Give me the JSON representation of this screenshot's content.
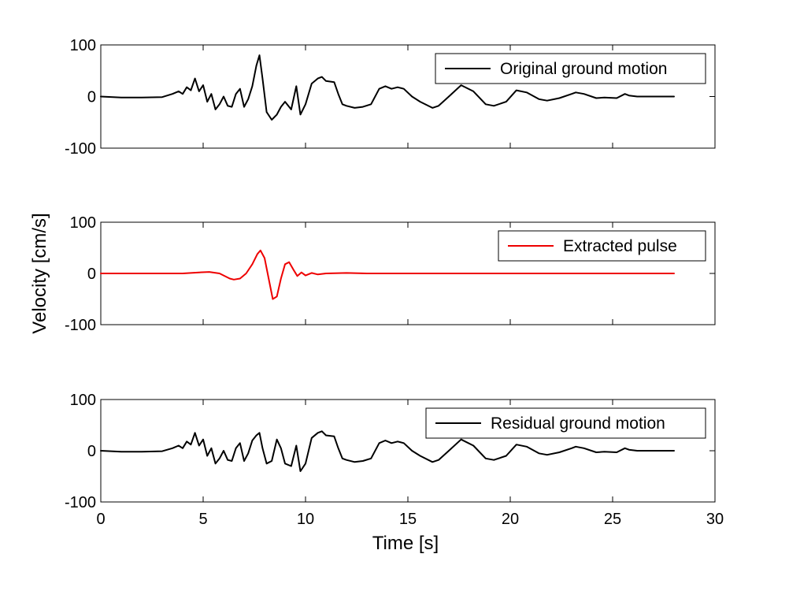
{
  "chart_data": [
    {
      "type": "line",
      "xlim": [
        0,
        30
      ],
      "ylim": [
        -100,
        100
      ],
      "xticks": [
        0,
        5,
        10,
        15,
        20,
        25,
        30
      ],
      "yticks": [
        -100,
        0,
        100
      ],
      "ytick_labels": [
        "-100",
        "0",
        "100"
      ],
      "xtick_labels": [],
      "grid": false,
      "legend_position": "top-right",
      "series": [
        {
          "name": "Original ground motion",
          "color": "#000000",
          "x": [
            0,
            1,
            2,
            3,
            3.5,
            3.8,
            4.0,
            4.2,
            4.4,
            4.6,
            4.8,
            5.0,
            5.2,
            5.4,
            5.6,
            5.8,
            6.0,
            6.2,
            6.4,
            6.6,
            6.8,
            7.0,
            7.2,
            7.4,
            7.6,
            7.75,
            7.9,
            8.1,
            8.35,
            8.6,
            8.8,
            9.0,
            9.3,
            9.55,
            9.75,
            10.0,
            10.3,
            10.6,
            10.8,
            11.0,
            11.4,
            11.6,
            11.8,
            12.0,
            12.4,
            12.8,
            13.2,
            13.6,
            13.9,
            14.2,
            14.5,
            14.8,
            15.2,
            15.6,
            16.2,
            16.5,
            17.0,
            17.6,
            18.2,
            18.8,
            19.2,
            19.8,
            20.3,
            20.8,
            21.4,
            21.8,
            22.4,
            23.0,
            23.2,
            23.6,
            24.2,
            24.6,
            25.2,
            25.6,
            25.8,
            26.2,
            27.0,
            28.0
          ],
          "y": [
            0,
            -2,
            -2,
            -1,
            5,
            10,
            5,
            18,
            12,
            35,
            10,
            22,
            -10,
            5,
            -25,
            -15,
            0,
            -18,
            -20,
            5,
            15,
            -20,
            -5,
            20,
            60,
            80,
            35,
            -30,
            -45,
            -35,
            -20,
            -10,
            -25,
            20,
            -35,
            -15,
            25,
            35,
            38,
            30,
            28,
            5,
            -15,
            -18,
            -22,
            -20,
            -15,
            15,
            20,
            15,
            18,
            15,
            0,
            -10,
            -22,
            -18,
            0,
            22,
            10,
            -15,
            -18,
            -10,
            12,
            8,
            -5,
            -8,
            -3,
            5,
            8,
            5,
            -3,
            -2,
            -3,
            5,
            2,
            0,
            0,
            0
          ]
        }
      ]
    },
    {
      "type": "line",
      "xlim": [
        0,
        30
      ],
      "ylim": [
        -100,
        100
      ],
      "xticks": [
        0,
        5,
        10,
        15,
        20,
        25,
        30
      ],
      "yticks": [
        -100,
        0,
        100
      ],
      "ytick_labels": [
        "-100",
        "0",
        "100"
      ],
      "xtick_labels": [],
      "ylabel": "Velocity [cm/s]",
      "grid": false,
      "legend_position": "top-right",
      "series": [
        {
          "name": "Extracted pulse",
          "color": "#ee0000",
          "x": [
            0,
            3.0,
            4.0,
            4.8,
            5.3,
            5.8,
            6.3,
            6.5,
            6.8,
            7.1,
            7.4,
            7.65,
            7.8,
            8.0,
            8.2,
            8.4,
            8.6,
            8.8,
            9.0,
            9.2,
            9.4,
            9.6,
            9.8,
            10.0,
            10.3,
            10.6,
            11.0,
            12.0,
            13.0,
            28.0
          ],
          "y": [
            0,
            0,
            0,
            2,
            3,
            0,
            -10,
            -12,
            -10,
            0,
            18,
            38,
            45,
            30,
            -10,
            -50,
            -45,
            -10,
            18,
            22,
            8,
            -5,
            2,
            -4,
            1,
            -2,
            0,
            1,
            0,
            0
          ]
        }
      ]
    },
    {
      "type": "line",
      "xlim": [
        0,
        30
      ],
      "ylim": [
        -100,
        100
      ],
      "xticks": [
        0,
        5,
        10,
        15,
        20,
        25,
        30
      ],
      "yticks": [
        -100,
        0,
        100
      ],
      "ytick_labels": [
        "-100",
        "0",
        "100"
      ],
      "xtick_labels": [
        "0",
        "5",
        "10",
        "15",
        "20",
        "25",
        "30"
      ],
      "xlabel": "Time [s]",
      "grid": false,
      "legend_position": "top-right",
      "series": [
        {
          "name": "Residual ground motion",
          "color": "#000000",
          "x": [
            0,
            1,
            2,
            3,
            3.5,
            3.8,
            4.0,
            4.2,
            4.4,
            4.6,
            4.8,
            5.0,
            5.2,
            5.4,
            5.6,
            5.8,
            6.0,
            6.2,
            6.4,
            6.6,
            6.8,
            7.0,
            7.2,
            7.4,
            7.6,
            7.75,
            7.9,
            8.1,
            8.35,
            8.6,
            8.8,
            9.0,
            9.3,
            9.55,
            9.75,
            10.0,
            10.3,
            10.6,
            10.8,
            11.0,
            11.4,
            11.6,
            11.8,
            12.0,
            12.4,
            12.8,
            13.2,
            13.6,
            13.9,
            14.2,
            14.5,
            14.8,
            15.2,
            15.6,
            16.2,
            16.5,
            17.0,
            17.6,
            18.2,
            18.8,
            19.2,
            19.8,
            20.3,
            20.8,
            21.4,
            21.8,
            22.4,
            23.0,
            23.2,
            23.6,
            24.2,
            24.6,
            25.2,
            25.6,
            25.8,
            26.2,
            27.0,
            28.0
          ],
          "y": [
            0,
            -2,
            -2,
            -1,
            5,
            10,
            5,
            18,
            12,
            35,
            10,
            22,
            -10,
            5,
            -25,
            -15,
            0,
            -18,
            -20,
            5,
            15,
            -20,
            -5,
            20,
            30,
            35,
            5,
            -25,
            -20,
            22,
            5,
            -25,
            -30,
            10,
            -40,
            -25,
            25,
            35,
            38,
            30,
            28,
            5,
            -15,
            -18,
            -22,
            -20,
            -15,
            15,
            20,
            15,
            18,
            15,
            0,
            -10,
            -22,
            -18,
            0,
            22,
            10,
            -15,
            -18,
            -10,
            12,
            8,
            -5,
            -8,
            -3,
            5,
            8,
            5,
            -3,
            -2,
            -3,
            5,
            2,
            0,
            0,
            0
          ]
        }
      ]
    }
  ]
}
